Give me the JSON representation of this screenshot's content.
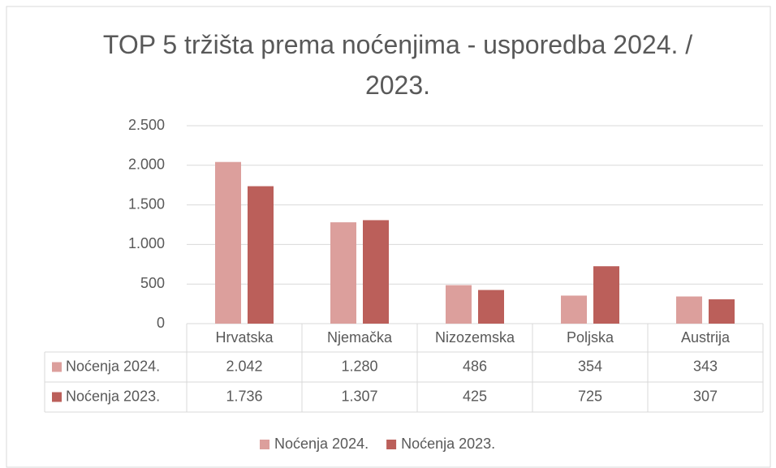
{
  "chart_data": {
    "type": "bar",
    "title": "TOP 5 tržišta prema noćenjima - usporedba 2024. / 2023.",
    "categories": [
      "Hrvatska",
      "Njemačka",
      "Nizozemska",
      "Poljska",
      "Austrija"
    ],
    "series": [
      {
        "name": "Noćenja 2024.",
        "color": "#dc9f9c",
        "values": [
          2042,
          1280,
          486,
          354,
          343
        ],
        "value_labels": [
          "2.042",
          "1.280",
          "486",
          "354",
          "343"
        ]
      },
      {
        "name": "Noćenja 2023.",
        "color": "#bb5f5a",
        "values": [
          1736,
          1307,
          425,
          725,
          307
        ],
        "value_labels": [
          "1.736",
          "1.307",
          "425",
          "725",
          "307"
        ]
      }
    ],
    "ylim": [
      0,
      2500
    ],
    "yticks": [
      0,
      500,
      {
        "value": 1000,
        "label": "1.000"
      },
      {
        "value": 1500,
        "label": "1.500"
      },
      {
        "value": 2000,
        "label": "2.000"
      },
      {
        "value": 2500,
        "label": "2.500"
      }
    ],
    "grid": true,
    "legend": "bottom"
  }
}
